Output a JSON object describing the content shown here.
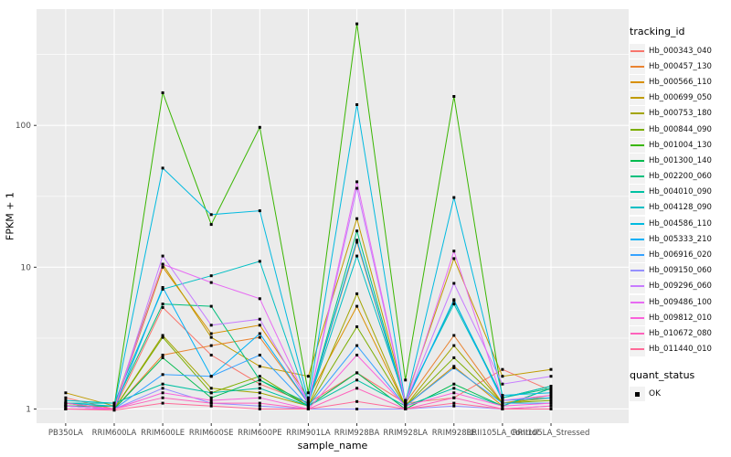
{
  "figure": {
    "bg": "#ffffff",
    "panel_bg": "#ebebeb",
    "grid_color": "#ffffff",
    "tick_color": "#333333",
    "axis_text_color": "#4d4d4d",
    "point_color": "#000000"
  },
  "chart_data": {
    "type": "line",
    "title": "",
    "xlabel": "sample_name",
    "ylabel": "FPKM + 1",
    "y_scale": "log10",
    "y_ticks": [
      1,
      10,
      100
    ],
    "y_minor_ticks": [
      3.1623,
      31.623,
      316.23
    ],
    "ylim": [
      0.79,
      660
    ],
    "grid": true,
    "legend_position": "right",
    "legend": {
      "series_title": "tracking_id",
      "status_title": "quant_status",
      "status_items": [
        {
          "label": "OK"
        }
      ]
    },
    "categories": [
      "PB350LA",
      "RRIM600LA",
      "RRIM600LE",
      "RRIM600SE",
      "RRIM600PE",
      "RRIM901LA",
      "RRIM928BA",
      "RRIM928LA",
      "RRIM928LE",
      "RRII105LA_Control",
      "RRII105LA_Stressed"
    ],
    "series": [
      {
        "name": "Hb_000343_040",
        "color": "#F8766D",
        "values": [
          1.2,
          1.0,
          5.2,
          2.4,
          1.5,
          1.1,
          1.8,
          1.1,
          1.2,
          1.9,
          1.35
        ]
      },
      {
        "name": "Hb_000457_130",
        "color": "#EA8331",
        "values": [
          1.1,
          1.0,
          2.4,
          2.8,
          3.2,
          1.1,
          15,
          1.1,
          3.3,
          1.1,
          1.25
        ]
      },
      {
        "name": "Hb_000566_110",
        "color": "#D89000",
        "values": [
          1.05,
          1.0,
          10,
          3.4,
          3.9,
          1.2,
          5.3,
          1.05,
          2.0,
          1.05,
          1.4
        ]
      },
      {
        "name": "Hb_000699_050",
        "color": "#C09B00",
        "values": [
          1.3,
          1.05,
          10.5,
          3.2,
          2.0,
          1.7,
          22,
          1.15,
          11.5,
          1.7,
          1.9
        ]
      },
      {
        "name": "Hb_000753_180",
        "color": "#A3A500",
        "values": [
          1.1,
          1.0,
          3.3,
          1.4,
          1.3,
          1.05,
          6.5,
          1.05,
          2.8,
          1.1,
          1.2
        ]
      },
      {
        "name": "Hb_000844_090",
        "color": "#7CAE00",
        "values": [
          1.05,
          1.0,
          3.2,
          1.3,
          1.7,
          1.05,
          3.8,
          1.05,
          2.3,
          1.1,
          1.15
        ]
      },
      {
        "name": "Hb_001004_130",
        "color": "#39B600",
        "values": [
          1.05,
          1.05,
          170,
          20,
          97,
          1.3,
          520,
          1.6,
          160,
          1.2,
          1.45
        ]
      },
      {
        "name": "Hb_001300_140",
        "color": "#00BB4E",
        "values": [
          1.0,
          1.0,
          2.3,
          1.2,
          1.6,
          1.05,
          1.8,
          1.0,
          1.5,
          1.05,
          1.4
        ]
      },
      {
        "name": "Hb_002200_060",
        "color": "#00BF7D",
        "values": [
          1.05,
          1.05,
          5.5,
          5.3,
          1.6,
          1.1,
          18,
          1.1,
          5.8,
          1.2,
          1.4
        ]
      },
      {
        "name": "Hb_004010_090",
        "color": "#00C1A3",
        "values": [
          1.1,
          1.1,
          1.5,
          1.3,
          1.4,
          1.05,
          1.6,
          1.05,
          1.4,
          1.05,
          1.4
        ]
      },
      {
        "name": "Hb_004128_090",
        "color": "#00BFC4",
        "values": [
          1.15,
          1.1,
          7.0,
          8.7,
          11,
          1.1,
          12,
          1.15,
          5.5,
          1.2,
          1.45
        ]
      },
      {
        "name": "Hb_004586_110",
        "color": "#00BAE0",
        "values": [
          1.1,
          1.05,
          50,
          23.5,
          25,
          1.15,
          140,
          1.1,
          31,
          1.25,
          1.3
        ]
      },
      {
        "name": "Hb_005333_210",
        "color": "#00B0F6",
        "values": [
          1.05,
          1.0,
          7.2,
          1.7,
          3.4,
          1.1,
          15.5,
          1.1,
          5.9,
          1.15,
          1.2
        ]
      },
      {
        "name": "Hb_006916_020",
        "color": "#35A2FF",
        "values": [
          1.0,
          1.0,
          1.75,
          1.7,
          2.4,
          1.05,
          2.8,
          1.05,
          1.95,
          1.1,
          1.1
        ]
      },
      {
        "name": "Hb_009150_060",
        "color": "#9590FF",
        "values": [
          1.0,
          1.0,
          1.4,
          1.1,
          1.05,
          1.0,
          1.0,
          1.0,
          1.05,
          1.0,
          1.05
        ]
      },
      {
        "name": "Hb_009296_060",
        "color": "#C77CFF",
        "values": [
          1.05,
          1.0,
          12,
          3.9,
          4.3,
          1.1,
          36,
          1.1,
          7.7,
          1.5,
          1.7
        ]
      },
      {
        "name": "Hb_009486_100",
        "color": "#E76BF3",
        "values": [
          1.05,
          1.0,
          10.5,
          7.8,
          6.0,
          1.1,
          40,
          1.1,
          13,
          1.15,
          1.25
        ]
      },
      {
        "name": "Hb_009812_010",
        "color": "#FA62DB",
        "values": [
          1.0,
          1.0,
          1.3,
          1.15,
          1.2,
          1.0,
          2.4,
          1.05,
          1.3,
          1.05,
          1.1
        ]
      },
      {
        "name": "Hb_010672_080",
        "color": "#FF62BC",
        "values": [
          1.1,
          1.0,
          1.2,
          1.1,
          1.1,
          1.0,
          1.4,
          1.0,
          1.2,
          1.0,
          1.05
        ]
      },
      {
        "name": "Hb_011440_010",
        "color": "#FF6A98",
        "values": [
          1.0,
          0.98,
          1.1,
          1.05,
          1.0,
          1.0,
          1.13,
          1.0,
          1.1,
          1.0,
          1.0
        ]
      }
    ]
  }
}
